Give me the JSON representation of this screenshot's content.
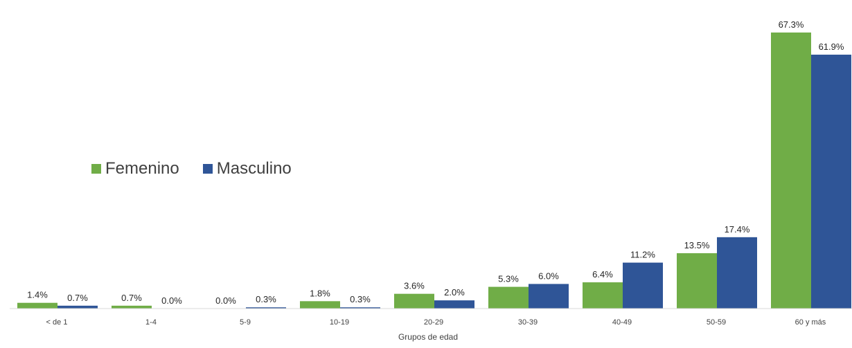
{
  "chart_data": {
    "type": "bar",
    "categories": [
      "< de 1",
      "1-4",
      "5-9",
      "10-19",
      "20-29",
      "30-39",
      "40-49",
      "50-59",
      "60 y más"
    ],
    "series": [
      {
        "name": "Femenino",
        "values": [
          1.4,
          0.7,
          0.0,
          1.8,
          3.6,
          5.3,
          6.4,
          13.5,
          67.3
        ],
        "labels": [
          "1.4%",
          "0.7%",
          "0.0%",
          "1.8%",
          "3.6%",
          "5.3%",
          "6.4%",
          "13.5%",
          "67.3%"
        ],
        "color": "#70ad47"
      },
      {
        "name": "Masculino",
        "values": [
          0.7,
          0.0,
          0.3,
          0.3,
          2.0,
          6.0,
          11.2,
          17.4,
          61.9
        ],
        "labels": [
          "0.7%",
          "0.0%",
          "0.3%",
          "0.3%",
          "2.0%",
          "6.0%",
          "11.2%",
          "17.4%",
          "61.9%"
        ],
        "color": "#2f5597"
      }
    ],
    "xlabel": "Grupos de edad",
    "ylabel": "",
    "ylim": [
      0,
      67.3
    ],
    "grid": false,
    "legend_position": "center-left"
  }
}
